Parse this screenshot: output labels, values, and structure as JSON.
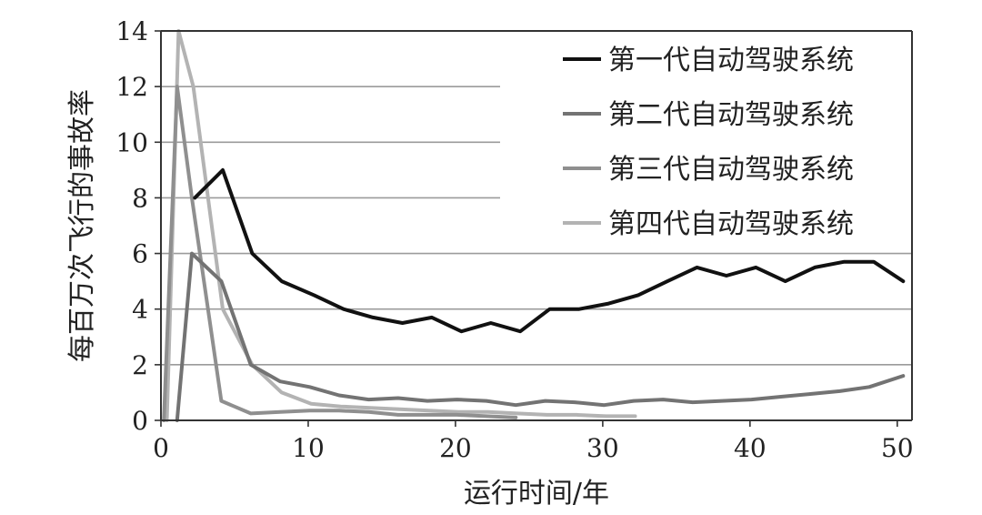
{
  "chart_data": {
    "type": "line",
    "xlabel": "运行时间/年",
    "ylabel": "每百万次飞行的事故率",
    "xlim": [
      0,
      51
    ],
    "ylim": [
      0,
      14
    ],
    "xticks": [
      0,
      10,
      20,
      30,
      40,
      50
    ],
    "yticks": [
      0,
      2,
      4,
      6,
      8,
      10,
      12,
      14
    ],
    "xtick_labels": [
      "0",
      "10",
      "20",
      "30",
      "40",
      "50"
    ],
    "ytick_labels": [
      "0",
      "2",
      "4",
      "6",
      "8",
      "10",
      "12",
      "14"
    ],
    "grid": "horizontal",
    "legend_position": "top-right",
    "series": [
      {
        "name": "第一代自动驾驶系统",
        "color": "#111111",
        "x": [
          2.3,
          4.2,
          6.2,
          8.2,
          10.4,
          12.4,
          14.4,
          16.4,
          18.4,
          20.4,
          22.4,
          24.4,
          26.4,
          28.4,
          30.4,
          32.4,
          34.4,
          36.4,
          38.4,
          40.4,
          42.4,
          44.4,
          46.4,
          48.4,
          50.4
        ],
        "y": [
          8.0,
          9.0,
          6.0,
          5.0,
          4.5,
          4.0,
          3.7,
          3.5,
          3.7,
          3.2,
          3.5,
          3.2,
          4.0,
          4.0,
          4.2,
          4.5,
          5.0,
          5.5,
          5.2,
          5.5,
          5.0,
          5.5,
          5.7,
          5.7,
          5.0
        ]
      },
      {
        "name": "第二代自动驾驶系统",
        "color": "#737373",
        "x": [
          1.1,
          2.1,
          4.1,
          6.1,
          8.1,
          10.1,
          12.1,
          14.1,
          16.1,
          18.1,
          20.1,
          22.1,
          24.1,
          26.1,
          28.1,
          30.1,
          32.1,
          34.1,
          36.1,
          38.1,
          40.1,
          42.1,
          44.1,
          46.1,
          48.1,
          50.4
        ],
        "y": [
          0.0,
          6.0,
          5.0,
          2.0,
          1.4,
          1.2,
          0.9,
          0.75,
          0.8,
          0.7,
          0.75,
          0.7,
          0.55,
          0.7,
          0.65,
          0.55,
          0.7,
          0.75,
          0.65,
          0.7,
          0.75,
          0.85,
          0.95,
          1.05,
          1.2,
          1.6
        ]
      },
      {
        "name": "第三代自动驾驶系统",
        "color": "#8f8f8f",
        "x": [
          0.2,
          1.1,
          2.1,
          4.1,
          6.1,
          8.1,
          10.1,
          12.1,
          14.1,
          16.1,
          18.1,
          20.1,
          22.1,
          24.1
        ],
        "y": [
          0.0,
          12.0,
          8.0,
          0.7,
          0.25,
          0.3,
          0.35,
          0.35,
          0.3,
          0.2,
          0.2,
          0.2,
          0.15,
          0.1
        ]
      },
      {
        "name": "第四代自动驾驶系统",
        "color": "#b3b3b3",
        "x": [
          0.4,
          1.2,
          2.2,
          4.2,
          6.2,
          8.2,
          10.2,
          12.2,
          14.2,
          16.2,
          18.2,
          20.2,
          22.2,
          24.2,
          26.2,
          28.2,
          30.2,
          32.2
        ],
        "y": [
          0.0,
          14.0,
          12.0,
          4.0,
          2.0,
          1.0,
          0.6,
          0.5,
          0.45,
          0.4,
          0.35,
          0.3,
          0.3,
          0.25,
          0.2,
          0.2,
          0.15,
          0.15
        ]
      }
    ]
  }
}
